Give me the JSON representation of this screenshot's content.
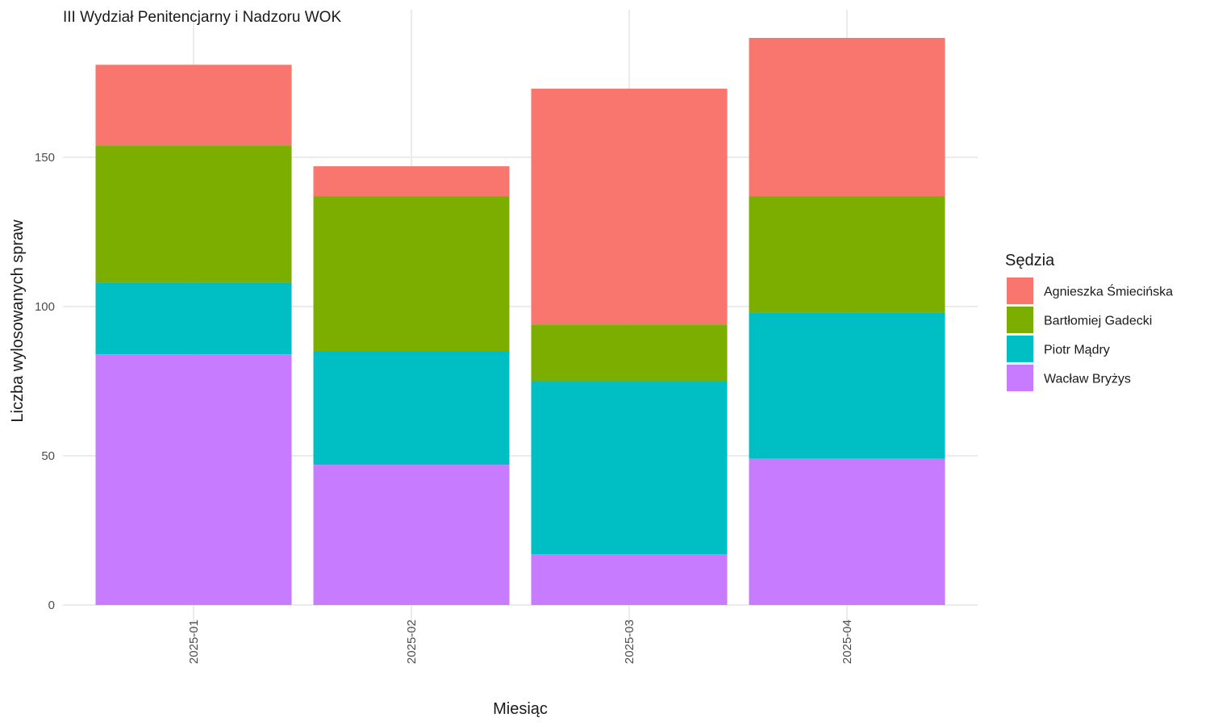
{
  "chart_data": {
    "type": "bar",
    "stacked": true,
    "title": "III Wydział Penitencjarny i Nadzoru WOK",
    "xlabel": "Miesiąc",
    "ylabel": "Liczba wylosowanych spraw",
    "categories": [
      "2025-01",
      "2025-02",
      "2025-03",
      "2025-04"
    ],
    "y_ticks": [
      0,
      50,
      100,
      150
    ],
    "ylim": [
      0,
      190
    ],
    "grid": true,
    "legend": {
      "title": "Sędzia",
      "position": "right"
    },
    "series": [
      {
        "name": "Wacław Bryżys",
        "color": "#C77CFF",
        "values": [
          84,
          47,
          17,
          49
        ]
      },
      {
        "name": "Piotr Mądry",
        "color": "#00BFC4",
        "values": [
          24,
          38,
          58,
          49
        ]
      },
      {
        "name": "Bartłomiej Gadecki",
        "color": "#7CAE00",
        "values": [
          46,
          52,
          19,
          39
        ]
      },
      {
        "name": "Agnieszka Śmiecińska",
        "color": "#F8766D",
        "values": [
          27,
          10,
          79,
          53
        ]
      }
    ],
    "legend_order": [
      3,
      2,
      1,
      0
    ]
  }
}
